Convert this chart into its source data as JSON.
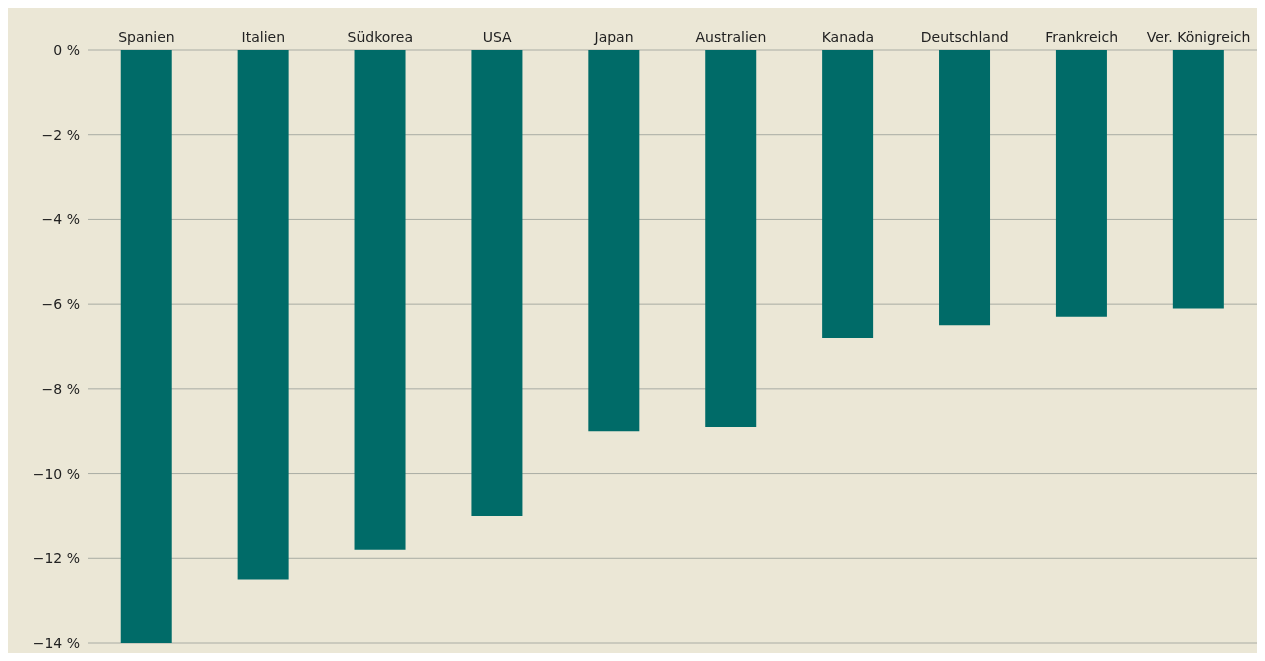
{
  "chart_data": {
    "type": "bar",
    "categories": [
      "Spanien",
      "Italien",
      "Südkorea",
      "USA",
      "Japan",
      "Australien",
      "Kanada",
      "Deutschland",
      "Frankreich",
      "Ver. Königreich"
    ],
    "values": [
      -14,
      -12.5,
      -11.8,
      -11,
      -9,
      -8.9,
      -6.8,
      -6.5,
      -6.3,
      -6.1
    ],
    "color": "#006b68",
    "ylim": [
      -14,
      0
    ],
    "yticks": [
      {
        "value": -14,
        "label": "−14 %"
      },
      {
        "value": -12,
        "label": "−12 %"
      },
      {
        "value": -10,
        "label": "−10 %"
      },
      {
        "value": -8,
        "label": "−8 %"
      },
      {
        "value": -6,
        "label": "−6 %"
      },
      {
        "value": -4,
        "label": "−4 %"
      },
      {
        "value": -2,
        "label": "−2 %"
      },
      {
        "value": 0,
        "label": "0 %"
      }
    ],
    "grid": "y"
  }
}
